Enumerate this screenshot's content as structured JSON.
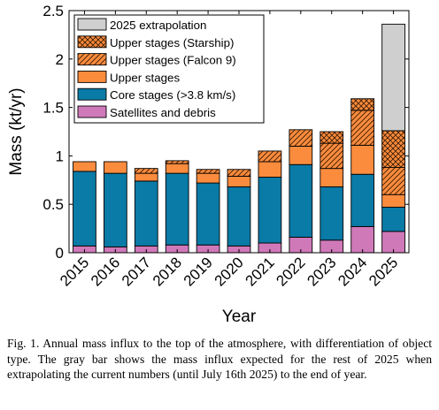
{
  "chart_data": {
    "type": "bar",
    "stacked": true,
    "xlabel": "Year",
    "ylabel": "Mass (kt/yr)",
    "ylim": [
      0,
      2.5
    ],
    "yticks": [
      0,
      0.5,
      1,
      1.5,
      2,
      2.5
    ],
    "ytick_labels": [
      "0",
      "0.5",
      "1",
      "1.5",
      "2",
      "2.5"
    ],
    "categories": [
      "2015",
      "2016",
      "2017",
      "2018",
      "2019",
      "2020",
      "2021",
      "2022",
      "2023",
      "2024",
      "2025"
    ],
    "legend_position": "top-left",
    "series": [
      {
        "key": "sat",
        "name": "Satellites and debris",
        "color": "#d079b9",
        "pattern": "none",
        "values": [
          0.07,
          0.06,
          0.07,
          0.08,
          0.08,
          0.07,
          0.1,
          0.16,
          0.13,
          0.27,
          0.22
        ]
      },
      {
        "key": "core",
        "name": "Core stages (>3.8 km/s)",
        "color": "#0a7aa6",
        "pattern": "none",
        "values": [
          0.77,
          0.76,
          0.67,
          0.74,
          0.64,
          0.61,
          0.68,
          0.75,
          0.55,
          0.54,
          0.25
        ]
      },
      {
        "key": "upper",
        "name": "Upper stages",
        "color": "#fb8c3e",
        "pattern": "none",
        "values": [
          0.1,
          0.12,
          0.08,
          0.1,
          0.1,
          0.11,
          0.16,
          0.19,
          0.19,
          0.3,
          0.13
        ]
      },
      {
        "key": "falcon",
        "name": "Upper stages (Falcon 9)",
        "color": "#fb8c3e",
        "pattern": "hatch",
        "values": [
          0,
          0,
          0.05,
          0.03,
          0.04,
          0.07,
          0.11,
          0.17,
          0.26,
          0.36,
          0.28
        ]
      },
      {
        "key": "starship",
        "name": "Upper stages (Starship)",
        "color": "#fb8c3e",
        "pattern": "crosshatch",
        "values": [
          0,
          0,
          0,
          0,
          0,
          0,
          0,
          0,
          0.12,
          0.12,
          0.38
        ]
      },
      {
        "key": "extrap",
        "name": "2025 extrapolation",
        "color": "#cfcfcf",
        "pattern": "none",
        "values": [
          0,
          0,
          0,
          0,
          0,
          0,
          0,
          0,
          0,
          0,
          1.1
        ]
      }
    ]
  },
  "caption": "Fig. 1. Annual mass influx to the top of the atmosphere, with differentiation of object type. The gray bar shows the mass influx expected for the rest of 2025 when extrapolating the current numbers (until July 16th 2025) to the end of year."
}
